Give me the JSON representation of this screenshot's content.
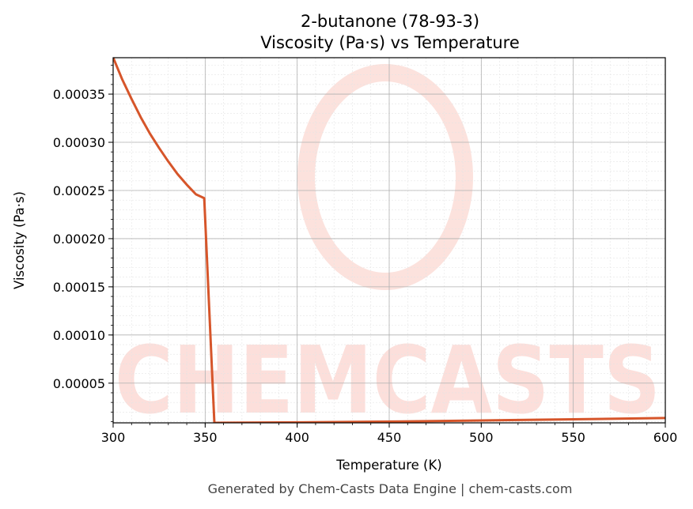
{
  "chart_data": {
    "type": "line",
    "title": "2-butanone (78-93-3)",
    "subtitle": "Viscosity (Pa·s) vs Temperature",
    "xlabel": "Temperature (K)",
    "ylabel": "Viscosity (Pa·s)",
    "xlim": [
      300,
      600
    ],
    "ylim": [
      8.8e-06,
      0.0003878
    ],
    "x_ticks": [
      "300",
      "350",
      "400",
      "450",
      "500",
      "550",
      "600"
    ],
    "y_ticks": [
      "0.00005",
      "0.00010",
      "0.00015",
      "0.00020",
      "0.00025",
      "0.00030",
      "0.00035"
    ],
    "grid": true,
    "line_color": "#d6552a",
    "series": [
      {
        "x": [
          300,
          305,
          310,
          315,
          320,
          325,
          330,
          335,
          340,
          345,
          349.5,
          355,
          360,
          400,
          450,
          500,
          550,
          600
        ],
        "values": [
          0.000388,
          0.000365,
          0.000345,
          0.000326,
          0.000309,
          0.000294,
          0.00028,
          0.000267,
          0.000256,
          0.000246,
          0.000242,
          8.8e-06,
          8.9e-06,
          9.3e-06,
          1.01e-05,
          1.13e-05,
          1.25e-05,
          1.38e-05
        ]
      }
    ]
  },
  "watermark": {
    "text": "CHEMCASTS",
    "color": "#fbd5cf"
  },
  "footer": "Generated by Chem-Casts Data Engine | chem-casts.com"
}
